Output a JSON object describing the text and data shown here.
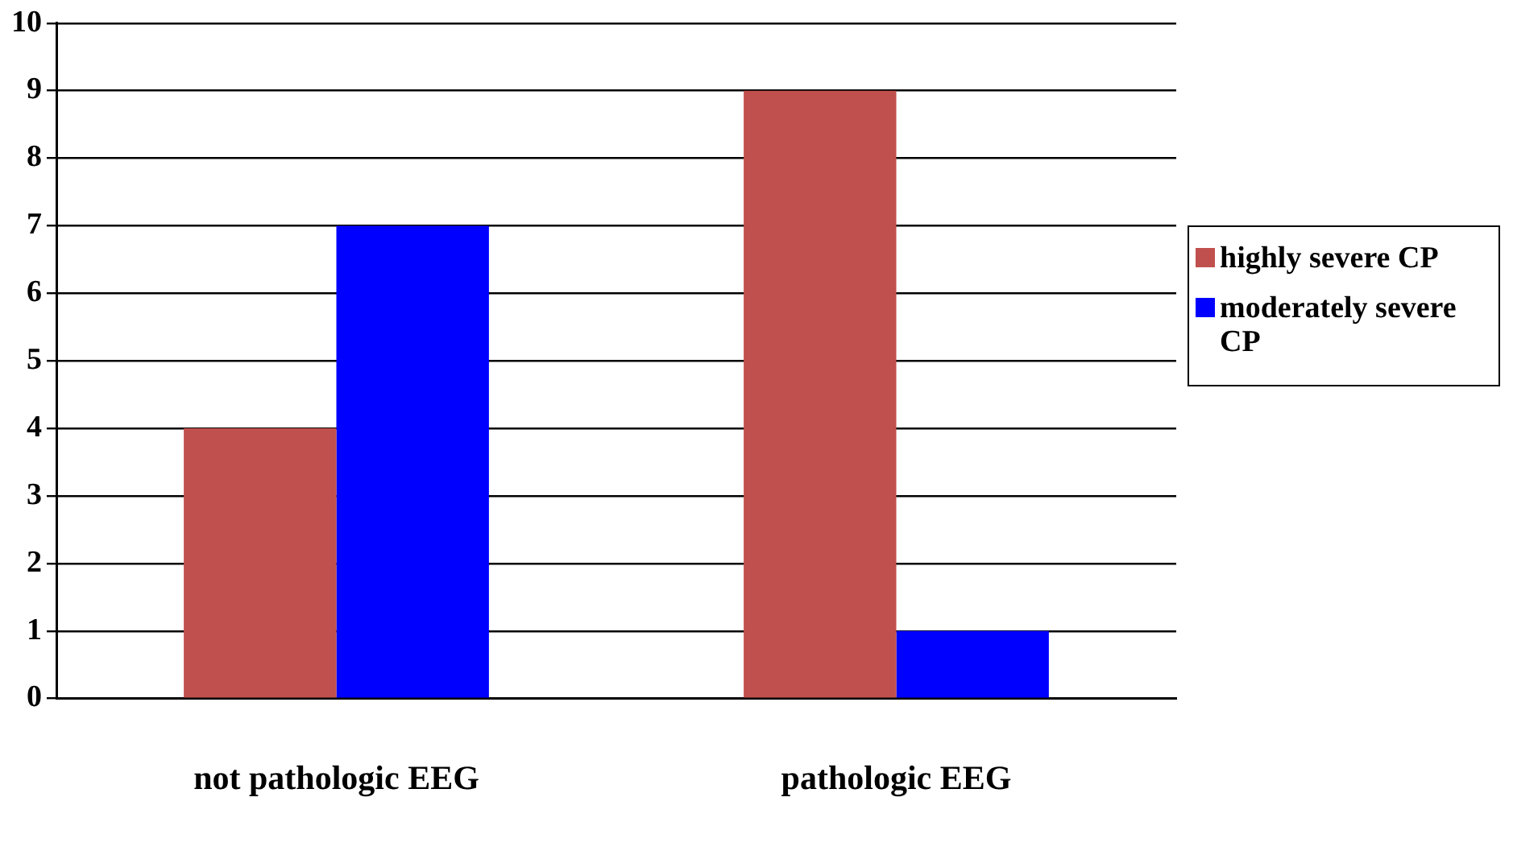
{
  "chart_data": {
    "type": "bar",
    "categories": [
      "not pathologic EEG",
      "pathologic EEG"
    ],
    "series": [
      {
        "name": "highly severe CP",
        "color": "#c0504d",
        "values": [
          4,
          9
        ]
      },
      {
        "name": "moderately severe CP",
        "color": "#0000ff",
        "values": [
          7,
          1
        ]
      }
    ],
    "ylim": [
      0,
      10
    ],
    "yticks": [
      0,
      1,
      2,
      3,
      4,
      5,
      6,
      7,
      8,
      9,
      10
    ],
    "grid": "y",
    "legend": "right"
  }
}
